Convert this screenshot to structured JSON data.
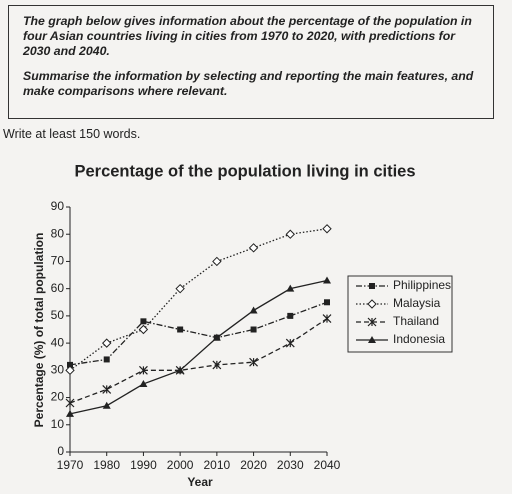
{
  "task": {
    "paragraphs": [
      "The graph below gives information about the percentage of the population in four Asian countries living in cities from 1970 to 2020, with predictions for 2030 and 2040.",
      "Summarise the information by selecting and reporting the main features, and make comparisons where relevant."
    ]
  },
  "instruction": "Write at least 150 words.",
  "chart_data": {
    "type": "line",
    "title": "Percentage of the population living in cities",
    "x_label": "Year",
    "y_label": "Percentage (%) of total population",
    "x": [
      1970,
      1980,
      1990,
      2000,
      2010,
      2020,
      2030,
      2040
    ],
    "xlim": [
      1970,
      2040
    ],
    "xticks": [
      1970,
      1980,
      1990,
      2000,
      2010,
      2020,
      2030,
      2040
    ],
    "ylim": [
      0,
      90
    ],
    "yticks": [
      0,
      10,
      20,
      30,
      40,
      50,
      60,
      70,
      80,
      90
    ],
    "legend": "right",
    "series": [
      {
        "name": "Philippines",
        "color": "#222222",
        "marker": "square",
        "line_style": "dash-dot",
        "values": [
          32,
          34,
          48,
          45,
          42,
          45,
          50,
          55
        ]
      },
      {
        "name": "Malaysia",
        "color": "#222222",
        "marker": "diamond",
        "line_style": "dotted",
        "values": [
          30,
          40,
          45,
          60,
          70,
          75,
          80,
          82
        ]
      },
      {
        "name": "Thailand",
        "color": "#222222",
        "marker": "star",
        "line_style": "dashed",
        "values": [
          18,
          23,
          30,
          30,
          32,
          33,
          40,
          49
        ]
      },
      {
        "name": "Indonesia",
        "color": "#222222",
        "marker": "triangle",
        "line_style": "solid",
        "values": [
          14,
          17,
          25,
          30,
          42,
          52,
          60,
          63
        ]
      }
    ]
  }
}
